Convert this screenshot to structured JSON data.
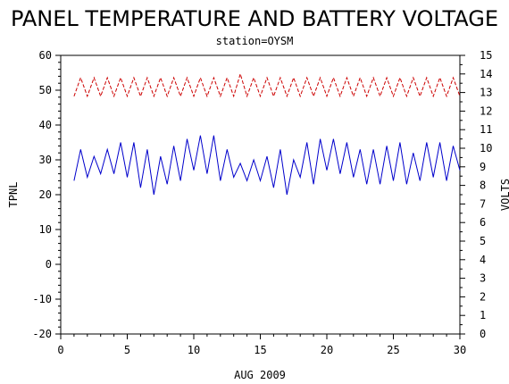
{
  "chart_data": {
    "type": "line",
    "title": "PANEL TEMPERATURE AND BATTERY VOLTAGE",
    "subtitle": "station=OYSM",
    "xlabel": "AUG 2009",
    "ylabel_left": "TPNL",
    "ylabel_right": "VOLTS",
    "xlim": [
      0,
      30
    ],
    "ylim_left": [
      -20,
      60
    ],
    "ylim_right": [
      0,
      15
    ],
    "x_ticks": [
      0,
      5,
      10,
      15,
      20,
      25,
      30
    ],
    "y_left_ticks": [
      -20,
      -10,
      0,
      10,
      20,
      30,
      40,
      50,
      60
    ],
    "y_right_ticks": [
      0,
      1,
      2,
      3,
      4,
      5,
      6,
      7,
      8,
      9,
      10,
      11,
      12,
      13,
      14,
      15
    ],
    "grid": false,
    "series": [
      {
        "axis": "left",
        "color": "#0000cc",
        "style": "solid",
        "x": [
          1.0,
          1.5,
          2.0,
          2.5,
          3.0,
          3.5,
          4.0,
          4.5,
          5.0,
          5.5,
          6.0,
          6.5,
          7.0,
          7.5,
          8.0,
          8.5,
          9.0,
          9.5,
          10.0,
          10.5,
          11.0,
          11.5,
          12.0,
          12.5,
          13.0,
          13.5,
          14.0,
          14.5,
          15.0,
          15.5,
          16.0,
          16.5,
          17.0,
          17.5,
          18.0,
          18.5,
          19.0,
          19.5,
          20.0,
          20.5,
          21.0,
          21.5,
          22.0,
          22.5,
          23.0,
          23.5,
          24.0,
          24.5,
          25.0,
          25.5,
          26.0,
          26.5,
          27.0,
          27.5,
          28.0,
          28.5,
          29.0,
          29.5,
          30.0
        ],
        "y": [
          24,
          33,
          25,
          31,
          26,
          33,
          26,
          35,
          25,
          35,
          22,
          33,
          20,
          31,
          23,
          34,
          24,
          36,
          27,
          37,
          26,
          37,
          24,
          33,
          25,
          29,
          24,
          30,
          24,
          31,
          22,
          33,
          20,
          30,
          25,
          35,
          23,
          36,
          27,
          36,
          26,
          35,
          25,
          33,
          23,
          33,
          23,
          34,
          24,
          35,
          23,
          32,
          24,
          35,
          25,
          35,
          24,
          34,
          27
        ]
      },
      {
        "axis": "right",
        "color": "#cc0000",
        "style": "dashed",
        "x": [
          1.0,
          1.5,
          2.0,
          2.5,
          3.0,
          3.5,
          4.0,
          4.5,
          5.0,
          5.5,
          6.0,
          6.5,
          7.0,
          7.5,
          8.0,
          8.5,
          9.0,
          9.5,
          10.0,
          10.5,
          11.0,
          11.5,
          12.0,
          12.5,
          13.0,
          13.5,
          14.0,
          14.5,
          15.0,
          15.5,
          16.0,
          16.5,
          17.0,
          17.5,
          18.0,
          18.5,
          19.0,
          19.5,
          20.0,
          20.5,
          21.0,
          21.5,
          22.0,
          22.5,
          23.0,
          23.5,
          24.0,
          24.5,
          25.0,
          25.5,
          26.0,
          26.5,
          27.0,
          27.5,
          28.0,
          28.5,
          29.0,
          29.5,
          30.0
        ],
        "y": [
          12.8,
          13.8,
          12.8,
          13.8,
          12.8,
          13.8,
          12.8,
          13.8,
          12.8,
          13.8,
          12.8,
          13.8,
          12.8,
          13.8,
          12.8,
          13.8,
          12.8,
          13.8,
          12.8,
          13.8,
          12.8,
          13.8,
          12.8,
          13.8,
          12.8,
          14.0,
          12.8,
          13.8,
          12.8,
          13.8,
          12.8,
          13.8,
          12.8,
          13.8,
          12.8,
          13.8,
          12.8,
          13.8,
          12.8,
          13.8,
          12.8,
          13.8,
          12.8,
          13.8,
          12.8,
          13.8,
          12.8,
          13.8,
          12.8,
          13.8,
          12.8,
          13.8,
          12.8,
          13.8,
          12.8,
          13.8,
          12.8,
          13.8,
          12.8
        ]
      }
    ]
  }
}
